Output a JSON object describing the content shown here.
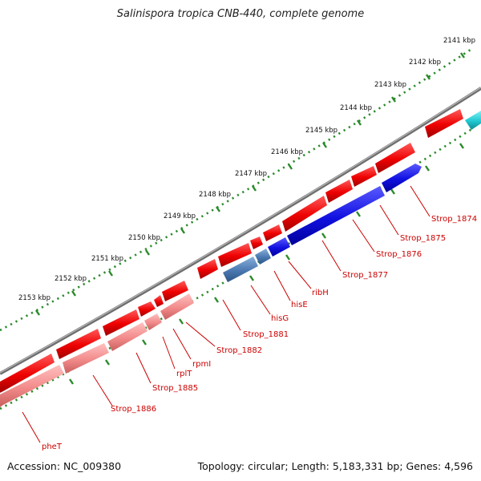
{
  "title": "Salinispora tropica CNB-440, complete genome",
  "footer": {
    "accession": "Accession: NC_009380",
    "summary": "Topology: circular; Length: 5,183,331 bp; Genes: 4,596"
  },
  "ticks": [
    "2141 kbp",
    "2142 kbp",
    "2143 kbp",
    "2144 kbp",
    "2145 kbp",
    "2146 kbp",
    "2147 kbp",
    "2148 kbp",
    "2149 kbp",
    "2150 kbp",
    "2151 kbp",
    "2152 kbp",
    "2153 kbp"
  ],
  "gene_labels": [
    "Strop_1874",
    "Strop_1875",
    "Strop_1876",
    "Strop_1877",
    "ribH",
    "hisE",
    "hisG",
    "Strop_1881",
    "Strop_1882",
    "rpmI",
    "rplT",
    "Strop_1885",
    "Strop_1886",
    "pheT"
  ],
  "colors": {
    "forward_cds": "#ee0000",
    "reverse_cds_light": "#f08080",
    "reverse_cds_blue": "#1010e0",
    "reverse_cds_steel": "#4a78b0",
    "other_cyan": "#20c8d0",
    "backbone": "#808080",
    "tick_dots": "#2a8a2a",
    "label": "#cc0000"
  }
}
